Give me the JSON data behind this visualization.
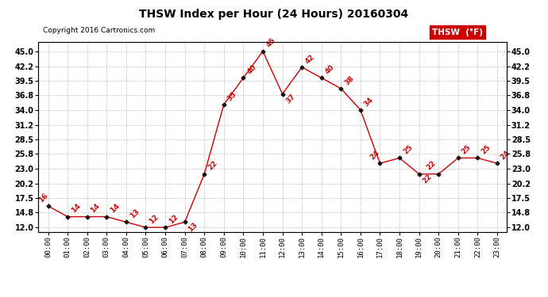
{
  "title": "THSW Index per Hour (24 Hours) 20160304",
  "copyright": "Copyright 2016 Cartronics.com",
  "hours": [
    0,
    1,
    2,
    3,
    4,
    5,
    6,
    7,
    8,
    9,
    10,
    11,
    12,
    13,
    14,
    15,
    16,
    17,
    18,
    19,
    20,
    21,
    22,
    23
  ],
  "values": [
    16,
    14,
    14,
    14,
    13,
    12,
    12,
    13,
    22,
    35,
    40,
    45,
    37,
    42,
    40,
    38,
    34,
    24,
    25,
    22,
    22,
    25,
    25,
    24
  ],
  "hour_labels": [
    "00:00",
    "01:00",
    "02:00",
    "03:00",
    "04:00",
    "05:00",
    "06:00",
    "07:00",
    "08:00",
    "09:00",
    "10:00",
    "11:00",
    "12:00",
    "13:00",
    "14:00",
    "15:00",
    "16:00",
    "17:00",
    "18:00",
    "19:00",
    "20:00",
    "21:00",
    "22:00",
    "23:00"
  ],
  "yticks": [
    12.0,
    14.8,
    17.5,
    20.2,
    23.0,
    25.8,
    28.5,
    31.2,
    34.0,
    36.8,
    39.5,
    42.2,
    45.0
  ],
  "ytick_labels": [
    "12.0",
    "14.8",
    "17.5",
    "20.2",
    "23.0",
    "25.8",
    "28.5",
    "31.2",
    "34.0",
    "36.8",
    "39.5",
    "42.2",
    "45.0"
  ],
  "ylim": [
    11.2,
    46.8
  ],
  "line_color": "#cc0000",
  "marker_color": "#111111",
  "label_color": "#cc0000",
  "bg_color": "#ffffff",
  "grid_color": "#c0c0c0",
  "legend_box_color": "#cc0000",
  "legend_text": "THSW  (°F)"
}
